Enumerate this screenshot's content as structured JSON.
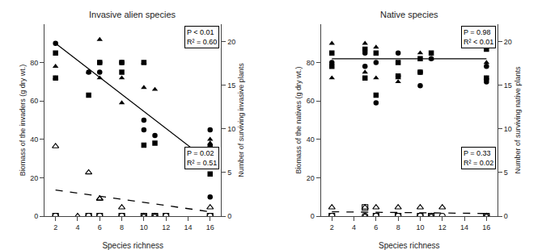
{
  "chart_data": [
    {
      "type": "scatter",
      "title": "Invasive alien species",
      "xlabel": "Species richness",
      "ylabel": "Biomass of the invaders (g dry wt.)",
      "y2label": "Number of surviving invasive plants",
      "xlim": [
        1,
        17
      ],
      "xticks": [
        2,
        4,
        6,
        8,
        10,
        12,
        14,
        16
      ],
      "ylim": [
        0,
        100
      ],
      "yticks": [
        0,
        20,
        40,
        60,
        80
      ],
      "y2lim": [
        0,
        22
      ],
      "y2ticks": [
        0,
        5,
        10,
        15,
        20
      ],
      "grid": false,
      "series": [
        {
          "type": "line",
          "line_style": "solid",
          "color": "#000000",
          "x": [
            2,
            16
          ],
          "values": [
            90,
            28
          ]
        },
        {
          "type": "line",
          "line_style": "dashed",
          "color": "#000000",
          "axis": "y2",
          "x": [
            2,
            16
          ],
          "values": [
            3,
            0.5
          ]
        },
        {
          "type": "scatter",
          "marker": "square",
          "color": "#000000",
          "x": [
            2,
            2,
            5,
            6,
            8,
            8,
            10,
            10,
            11,
            16,
            16
          ],
          "values": [
            85,
            72,
            63,
            80,
            80,
            75,
            80,
            37,
            38,
            36,
            22
          ]
        },
        {
          "type": "scatter",
          "marker": "circle",
          "color": "#000000",
          "x": [
            2,
            5,
            6,
            6,
            8,
            10,
            10,
            11,
            16,
            16
          ],
          "values": [
            90,
            75,
            80,
            75,
            80,
            50,
            45,
            42,
            45,
            10
          ]
        },
        {
          "type": "scatter",
          "marker": "triangle-up",
          "color": "#000000",
          "x": [
            2,
            2,
            5,
            6,
            6,
            8,
            8,
            10,
            10,
            11,
            16,
            16
          ],
          "values": [
            78,
            72,
            75,
            92,
            72,
            59,
            72,
            80,
            67,
            66,
            40,
            38
          ]
        },
        {
          "type": "scatter",
          "marker": "triangle-up-open",
          "color": "#000000",
          "axis": "y2",
          "x": [
            2,
            4,
            5,
            6,
            6,
            8,
            10,
            11,
            16
          ],
          "values": [
            8,
            0,
            5,
            2,
            2,
            1,
            0,
            0,
            1
          ]
        },
        {
          "type": "scatter",
          "marker": "circle-open",
          "color": "#000000",
          "axis": "y2",
          "x": [
            2,
            5,
            6,
            8,
            10,
            11,
            12,
            16
          ],
          "values": [
            0,
            0,
            0,
            0,
            0,
            0,
            0,
            0
          ]
        },
        {
          "type": "scatter",
          "marker": "square-open",
          "color": "#000000",
          "axis": "y2",
          "x": [
            2,
            5,
            6,
            8,
            10,
            11,
            12,
            16
          ],
          "values": [
            0,
            0,
            0,
            0,
            0,
            0,
            0,
            0
          ]
        }
      ],
      "annotations": [
        {
          "text": "P < 0.01\nR² = 0.60"
        },
        {
          "text": "P = 0.02\nR² = 0.51"
        }
      ]
    },
    {
      "type": "scatter",
      "title": "Native species",
      "xlabel": "Species richness",
      "ylabel": "Biomass of the natives (g dry wt.)",
      "y2label": "Number of surviving native plants",
      "xlim": [
        1,
        17
      ],
      "xticks": [
        2,
        4,
        6,
        8,
        10,
        12,
        14,
        16
      ],
      "ylim": [
        0,
        100
      ],
      "yticks": [
        0,
        20,
        40,
        60,
        80
      ],
      "y2lim": [
        0,
        22
      ],
      "y2ticks": [
        0,
        5,
        10,
        15,
        20
      ],
      "grid": false,
      "series": [
        {
          "type": "line",
          "line_style": "solid",
          "color": "#000000",
          "x": [
            2,
            16
          ],
          "values": [
            82,
            82
          ]
        },
        {
          "type": "line",
          "line_style": "dashed",
          "color": "#000000",
          "axis": "y2",
          "x": [
            2,
            16
          ],
          "values": [
            0.5,
            0.3
          ]
        },
        {
          "type": "scatter",
          "marker": "square",
          "color": "#000000",
          "x": [
            2,
            2,
            5,
            5,
            6,
            6,
            8,
            8,
            10,
            10,
            11,
            16,
            16
          ],
          "values": [
            85,
            78,
            87,
            72,
            63,
            85,
            80,
            73,
            82,
            75,
            85,
            87,
            72
          ]
        },
        {
          "type": "scatter",
          "marker": "circle",
          "color": "#000000",
          "x": [
            2,
            5,
            5,
            6,
            6,
            8,
            8,
            10,
            10,
            11,
            16,
            16
          ],
          "values": [
            80,
            85,
            78,
            59,
            80,
            85,
            73,
            75,
            68,
            82,
            78,
            70
          ]
        },
        {
          "type": "scatter",
          "marker": "triangle-up",
          "color": "#000000",
          "x": [
            2,
            2,
            5,
            5,
            6,
            6,
            8,
            8,
            10,
            11,
            16,
            16
          ],
          "values": [
            90,
            72,
            90,
            75,
            88,
            72,
            70,
            72,
            85,
            82,
            80,
            72
          ]
        },
        {
          "type": "scatter",
          "marker": "triangle-up-open",
          "color": "#000000",
          "axis": "y2",
          "x": [
            2,
            5,
            5,
            6,
            8,
            10,
            11,
            12,
            16
          ],
          "values": [
            1,
            1,
            0,
            1,
            1,
            1,
            0,
            1,
            0
          ]
        },
        {
          "type": "scatter",
          "marker": "circle-open",
          "color": "#000000",
          "axis": "y2",
          "x": [
            2,
            5,
            6,
            8,
            10,
            11,
            12,
            16
          ],
          "values": [
            0,
            0,
            0,
            0,
            0,
            0,
            0,
            0
          ]
        },
        {
          "type": "scatter",
          "marker": "square-open",
          "color": "#000000",
          "axis": "y2",
          "x": [
            2,
            5,
            6,
            8,
            10,
            11,
            16
          ],
          "values": [
            0,
            1,
            0,
            0,
            0,
            0,
            0
          ]
        }
      ],
      "annotations": [
        {
          "text": "P = 0.98\nR² < 0.01"
        },
        {
          "text": "P = 0.33\nR² = 0.02"
        }
      ]
    }
  ]
}
